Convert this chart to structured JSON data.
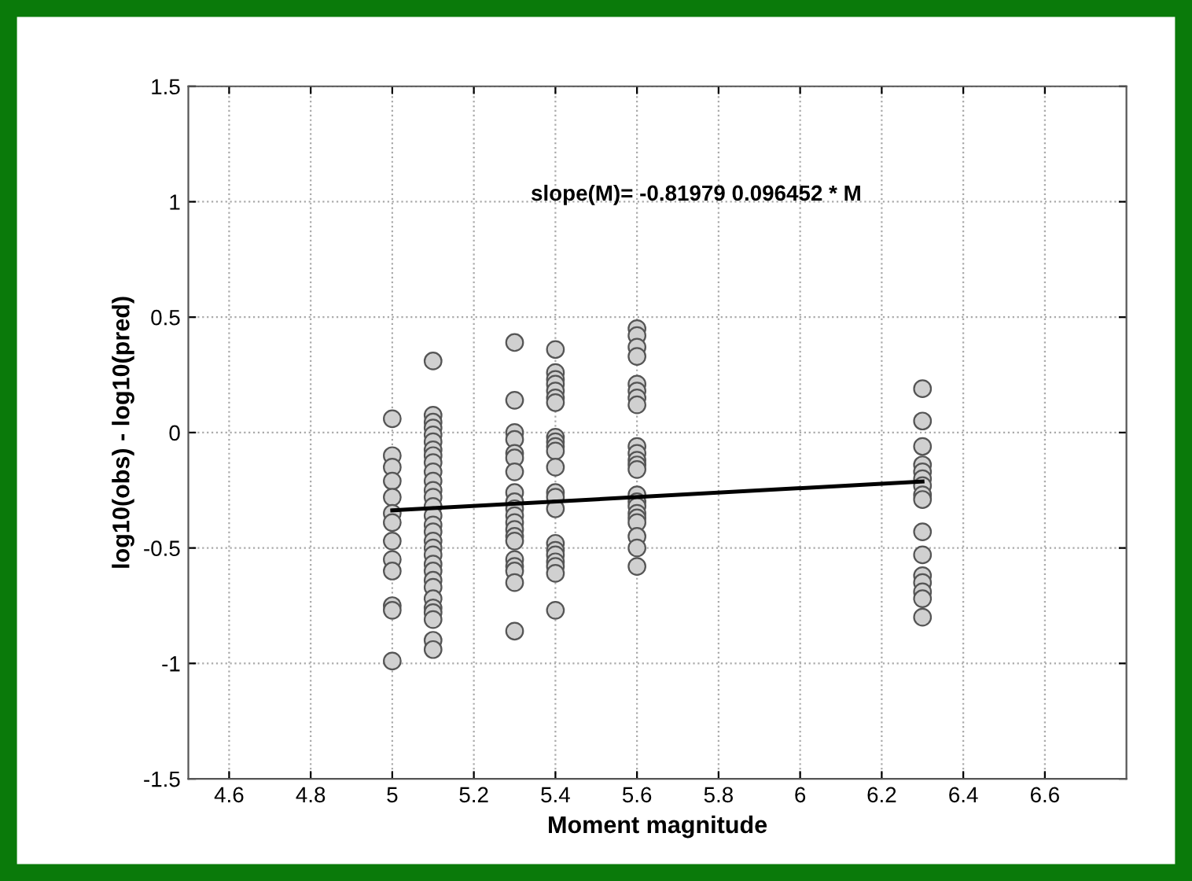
{
  "chart_data": {
    "type": "scatter",
    "xlabel": "Moment magnitude",
    "ylabel": "log10(obs) - log10(pred)",
    "annotations": [
      "slope(M)= -0.81979 0.096452 * M"
    ],
    "xlim": [
      4.5,
      6.8
    ],
    "ylim": [
      -1.5,
      1.5
    ],
    "xticks": [
      4.6,
      4.8,
      5,
      5.2,
      5.4,
      5.6,
      5.8,
      6,
      6.2,
      6.4,
      6.6
    ],
    "yticks": [
      -1.5,
      -1,
      -0.5,
      0,
      0.5,
      1,
      1.5
    ],
    "grid": true,
    "marker": "circle",
    "series": [
      {
        "color": "#d0d0d0",
        "x": [
          5,
          5,
          5,
          5,
          5,
          5,
          5,
          5,
          5,
          5,
          5,
          5,
          5,
          5.1,
          5.1,
          5.1,
          5.1,
          5.1,
          5.1,
          5.1,
          5.1,
          5.1,
          5.1,
          5.1,
          5.1,
          5.1,
          5.1,
          5.1,
          5.1,
          5.1,
          5.1,
          5.1,
          5.1,
          5.1,
          5.1,
          5.1,
          5.1,
          5.1,
          5.1,
          5.1,
          5.1,
          5.1,
          5.1,
          5.3,
          5.3,
          5.3,
          5.3,
          5.3,
          5.3,
          5.3,
          5.3,
          5.3,
          5.3,
          5.3,
          5.3,
          5.3,
          5.3,
          5.3,
          5.3,
          5.3,
          5.3,
          5.3,
          5.3,
          5.4,
          5.4,
          5.4,
          5.4,
          5.4,
          5.4,
          5.4,
          5.4,
          5.4,
          5.4,
          5.4,
          5.4,
          5.4,
          5.4,
          5.4,
          5.4,
          5.4,
          5.4,
          5.4,
          5.4,
          5.4,
          5.4,
          5.6,
          5.6,
          5.6,
          5.6,
          5.6,
          5.6,
          5.6,
          5.6,
          5.6,
          5.6,
          5.6,
          5.6,
          5.6,
          5.6,
          5.6,
          5.6,
          5.6,
          5.6,
          5.6,
          5.6,
          5.6,
          5.6,
          6.3,
          6.3,
          6.3,
          6.3,
          6.3,
          6.3,
          6.3,
          6.3,
          6.3,
          6.3,
          6.3,
          6.3,
          6.3,
          6.3,
          6.3,
          6.3
        ],
        "values": [
          0.06,
          -0.1,
          -0.15,
          -0.21,
          -0.28,
          -0.35,
          -0.39,
          -0.47,
          -0.55,
          -0.6,
          -0.75,
          -0.77,
          -0.99,
          0.31,
          0.075,
          0.045,
          0.02,
          -0.01,
          -0.04,
          -0.075,
          -0.1,
          -0.13,
          -0.17,
          -0.21,
          -0.25,
          -0.28,
          -0.32,
          -0.36,
          -0.4,
          -0.43,
          -0.47,
          -0.5,
          -0.53,
          -0.57,
          -0.6,
          -0.64,
          -0.67,
          -0.72,
          -0.76,
          -0.78,
          -0.81,
          -0.9,
          -0.94,
          0.39,
          0.14,
          0.0,
          -0.03,
          -0.09,
          -0.11,
          -0.17,
          -0.26,
          -0.3,
          -0.33,
          -0.36,
          -0.39,
          -0.42,
          -0.45,
          -0.47,
          -0.55,
          -0.58,
          -0.6,
          -0.65,
          -0.86,
          0.36,
          0.26,
          0.23,
          0.21,
          0.18,
          0.15,
          0.13,
          -0.02,
          -0.04,
          -0.06,
          -0.08,
          -0.15,
          -0.26,
          -0.28,
          -0.33,
          -0.48,
          -0.51,
          -0.53,
          -0.56,
          -0.58,
          -0.61,
          -0.77,
          0.45,
          0.42,
          0.37,
          0.33,
          0.21,
          0.18,
          0.15,
          0.12,
          -0.06,
          -0.09,
          -0.12,
          -0.14,
          -0.16,
          -0.27,
          -0.3,
          -0.32,
          -0.35,
          -0.37,
          -0.39,
          -0.45,
          -0.5,
          -0.58,
          0.19,
          0.05,
          -0.06,
          -0.14,
          -0.17,
          -0.2,
          -0.23,
          -0.27,
          -0.29,
          -0.43,
          -0.53,
          -0.62,
          -0.65,
          -0.69,
          -0.72,
          -0.8
        ]
      },
      {
        "type": "line",
        "color": "#000000",
        "marker": "none",
        "x": [
          5,
          6.3
        ],
        "values": [
          -0.337,
          -0.212
        ]
      }
    ]
  }
}
